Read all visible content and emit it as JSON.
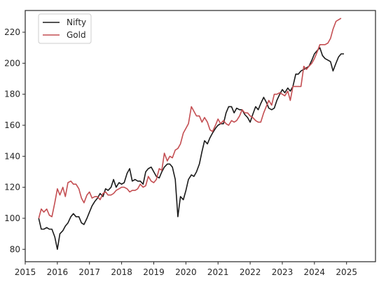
{
  "chart_data": {
    "type": "line",
    "title": "",
    "xlabel": "",
    "ylabel": "",
    "xlim": [
      2015.0,
      2025.9
    ],
    "ylim": [
      72,
      234
    ],
    "grid": false,
    "legend_placement": "top-left",
    "x_ticks": [
      2015,
      2016,
      2017,
      2018,
      2019,
      2020,
      2021,
      2022,
      2023,
      2024,
      2025
    ],
    "y_ticks": [
      80,
      100,
      120,
      140,
      160,
      180,
      200,
      220
    ],
    "series": [
      {
        "name": "Nifty",
        "color": "#1a1a1a",
        "points": [
          [
            2015.42,
            100
          ],
          [
            2015.5,
            93
          ],
          [
            2015.58,
            93
          ],
          [
            2015.67,
            94
          ],
          [
            2015.75,
            93
          ],
          [
            2015.83,
            93
          ],
          [
            2015.92,
            88
          ],
          [
            2016.0,
            80
          ],
          [
            2016.08,
            90
          ],
          [
            2016.17,
            92
          ],
          [
            2016.25,
            95
          ],
          [
            2016.33,
            97
          ],
          [
            2016.42,
            101
          ],
          [
            2016.5,
            103
          ],
          [
            2016.58,
            101
          ],
          [
            2016.67,
            101
          ],
          [
            2016.75,
            97
          ],
          [
            2016.83,
            96
          ],
          [
            2016.92,
            100
          ],
          [
            2017.0,
            104
          ],
          [
            2017.08,
            108
          ],
          [
            2017.17,
            111
          ],
          [
            2017.25,
            113
          ],
          [
            2017.33,
            116
          ],
          [
            2017.42,
            114
          ],
          [
            2017.5,
            119
          ],
          [
            2017.58,
            118
          ],
          [
            2017.67,
            120
          ],
          [
            2017.75,
            125
          ],
          [
            2017.83,
            120
          ],
          [
            2017.92,
            123
          ],
          [
            2018.0,
            122
          ],
          [
            2018.08,
            123
          ],
          [
            2018.17,
            129
          ],
          [
            2018.25,
            132
          ],
          [
            2018.33,
            124
          ],
          [
            2018.42,
            125
          ],
          [
            2018.5,
            124
          ],
          [
            2018.58,
            124
          ],
          [
            2018.67,
            122
          ],
          [
            2018.75,
            130
          ],
          [
            2018.83,
            132
          ],
          [
            2018.92,
            133
          ],
          [
            2019.0,
            130
          ],
          [
            2019.08,
            127
          ],
          [
            2019.17,
            126
          ],
          [
            2019.25,
            130
          ],
          [
            2019.33,
            133
          ],
          [
            2019.42,
            135
          ],
          [
            2019.5,
            135
          ],
          [
            2019.58,
            133
          ],
          [
            2019.67,
            125
          ],
          [
            2019.75,
            101
          ],
          [
            2019.83,
            114
          ],
          [
            2019.92,
            112
          ],
          [
            2020.0,
            118
          ],
          [
            2020.08,
            125
          ],
          [
            2020.17,
            128
          ],
          [
            2020.25,
            127
          ],
          [
            2020.33,
            130
          ],
          [
            2020.42,
            135
          ],
          [
            2020.5,
            143
          ],
          [
            2020.58,
            150
          ],
          [
            2020.67,
            148
          ],
          [
            2020.75,
            152
          ],
          [
            2020.83,
            155
          ],
          [
            2020.92,
            158
          ],
          [
            2021.0,
            160
          ],
          [
            2021.08,
            161
          ],
          [
            2021.17,
            161
          ],
          [
            2021.25,
            168
          ],
          [
            2021.33,
            172
          ],
          [
            2021.42,
            172
          ],
          [
            2021.5,
            168
          ],
          [
            2021.58,
            171
          ],
          [
            2021.67,
            170
          ],
          [
            2021.75,
            170
          ],
          [
            2021.83,
            167
          ],
          [
            2021.92,
            165
          ],
          [
            2022.0,
            162
          ],
          [
            2022.08,
            167
          ],
          [
            2022.17,
            172
          ],
          [
            2022.25,
            170
          ],
          [
            2022.33,
            174
          ],
          [
            2022.42,
            178
          ],
          [
            2022.5,
            175
          ],
          [
            2022.58,
            171
          ],
          [
            2022.67,
            170
          ],
          [
            2022.75,
            171
          ],
          [
            2022.83,
            176
          ],
          [
            2022.92,
            180
          ],
          [
            2023.0,
            183
          ],
          [
            2023.08,
            181
          ],
          [
            2023.17,
            184
          ],
          [
            2023.25,
            182
          ],
          [
            2023.33,
            185
          ],
          [
            2023.42,
            193
          ],
          [
            2023.5,
            193
          ],
          [
            2023.58,
            195
          ],
          [
            2023.67,
            196
          ],
          [
            2023.75,
            197
          ],
          [
            2023.83,
            198
          ],
          [
            2023.92,
            202
          ],
          [
            2024.0,
            206
          ],
          [
            2024.08,
            208
          ],
          [
            2024.17,
            210
          ],
          [
            2024.25,
            205
          ],
          [
            2024.33,
            203
          ],
          [
            2024.42,
            202
          ],
          [
            2024.5,
            201
          ],
          [
            2024.58,
            195
          ],
          [
            2024.67,
            200
          ],
          [
            2024.75,
            204
          ],
          [
            2024.83,
            206
          ],
          [
            2024.92,
            206
          ]
        ]
      },
      {
        "name": "Gold",
        "color": "#c44e52",
        "points": [
          [
            2015.42,
            100
          ],
          [
            2015.5,
            106
          ],
          [
            2015.58,
            104
          ],
          [
            2015.67,
            106
          ],
          [
            2015.75,
            102
          ],
          [
            2015.83,
            101
          ],
          [
            2015.92,
            110
          ],
          [
            2016.0,
            119
          ],
          [
            2016.08,
            115
          ],
          [
            2016.17,
            120
          ],
          [
            2016.25,
            114
          ],
          [
            2016.33,
            123
          ],
          [
            2016.42,
            124
          ],
          [
            2016.5,
            122
          ],
          [
            2016.58,
            122
          ],
          [
            2016.67,
            119
          ],
          [
            2016.75,
            113
          ],
          [
            2016.83,
            110
          ],
          [
            2016.92,
            115
          ],
          [
            2017.0,
            117
          ],
          [
            2017.08,
            113
          ],
          [
            2017.17,
            114
          ],
          [
            2017.25,
            114
          ],
          [
            2017.33,
            112
          ],
          [
            2017.42,
            116
          ],
          [
            2017.5,
            117
          ],
          [
            2017.58,
            115
          ],
          [
            2017.67,
            115
          ],
          [
            2017.75,
            116
          ],
          [
            2017.83,
            118
          ],
          [
            2017.92,
            119
          ],
          [
            2018.0,
            120
          ],
          [
            2018.08,
            120
          ],
          [
            2018.17,
            119
          ],
          [
            2018.25,
            117
          ],
          [
            2018.33,
            118
          ],
          [
            2018.42,
            118
          ],
          [
            2018.5,
            119
          ],
          [
            2018.58,
            122
          ],
          [
            2018.67,
            120
          ],
          [
            2018.75,
            121
          ],
          [
            2018.83,
            127
          ],
          [
            2018.92,
            124
          ],
          [
            2019.0,
            123
          ],
          [
            2019.08,
            125
          ],
          [
            2019.17,
            132
          ],
          [
            2019.25,
            131
          ],
          [
            2019.33,
            142
          ],
          [
            2019.42,
            137
          ],
          [
            2019.5,
            140
          ],
          [
            2019.58,
            139
          ],
          [
            2019.67,
            144
          ],
          [
            2019.75,
            145
          ],
          [
            2019.83,
            148
          ],
          [
            2019.92,
            155
          ],
          [
            2020.0,
            158
          ],
          [
            2020.08,
            161
          ],
          [
            2020.17,
            172
          ],
          [
            2020.25,
            169
          ],
          [
            2020.33,
            166
          ],
          [
            2020.42,
            166
          ],
          [
            2020.5,
            162
          ],
          [
            2020.58,
            165
          ],
          [
            2020.67,
            162
          ],
          [
            2020.75,
            157
          ],
          [
            2020.83,
            156
          ],
          [
            2020.92,
            160
          ],
          [
            2021.0,
            164
          ],
          [
            2021.08,
            161
          ],
          [
            2021.17,
            163
          ],
          [
            2021.25,
            161
          ],
          [
            2021.33,
            160
          ],
          [
            2021.42,
            163
          ],
          [
            2021.5,
            162
          ],
          [
            2021.58,
            163
          ],
          [
            2021.67,
            166
          ],
          [
            2021.75,
            170
          ],
          [
            2021.83,
            168
          ],
          [
            2021.92,
            168
          ],
          [
            2022.0,
            166
          ],
          [
            2022.08,
            165
          ],
          [
            2022.17,
            163
          ],
          [
            2022.25,
            162
          ],
          [
            2022.33,
            162
          ],
          [
            2022.42,
            168
          ],
          [
            2022.5,
            172
          ],
          [
            2022.58,
            176
          ],
          [
            2022.67,
            173
          ],
          [
            2022.75,
            180
          ],
          [
            2022.83,
            180
          ],
          [
            2022.92,
            181
          ],
          [
            2023.0,
            180
          ],
          [
            2023.08,
            179
          ],
          [
            2023.17,
            182
          ],
          [
            2023.25,
            176
          ],
          [
            2023.33,
            185
          ],
          [
            2023.42,
            185
          ],
          [
            2023.5,
            185
          ],
          [
            2023.58,
            185
          ],
          [
            2023.67,
            198
          ],
          [
            2023.75,
            196
          ],
          [
            2023.83,
            198
          ],
          [
            2023.92,
            200
          ],
          [
            2024.0,
            203
          ],
          [
            2024.08,
            207
          ],
          [
            2024.17,
            212
          ],
          [
            2024.25,
            212
          ],
          [
            2024.33,
            212
          ],
          [
            2024.42,
            213
          ],
          [
            2024.5,
            216
          ],
          [
            2024.58,
            222
          ],
          [
            2024.67,
            227
          ],
          [
            2024.75,
            228
          ],
          [
            2024.83,
            229
          ]
        ]
      }
    ]
  }
}
